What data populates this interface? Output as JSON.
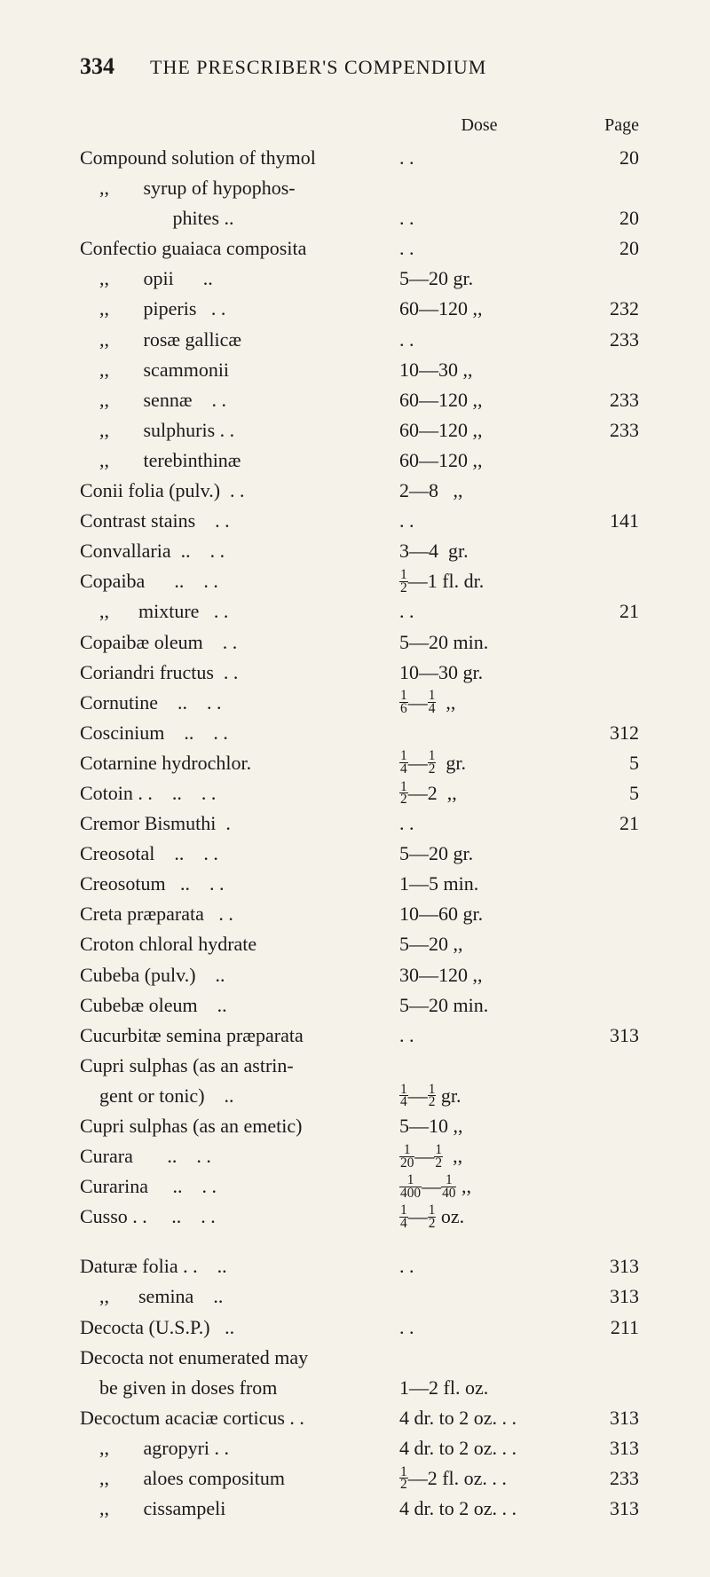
{
  "page_number": "334",
  "running_title": "THE PRESCRIBER'S COMPENDIUM",
  "col_dose": "Dose",
  "col_page": "Page",
  "rows": [
    {
      "name": "Compound solution of thymol",
      "dose": ". .",
      "page": "20"
    },
    {
      "name": "    ,,       syrup of hypophos-",
      "dose": "",
      "page": ""
    },
    {
      "name": "                   phites  ..",
      "dose": ". .",
      "page": "20"
    },
    {
      "name": "Confectio guaiaca composita",
      "dose": ". .",
      "page": "20"
    },
    {
      "name": "    ,,       opii      ..",
      "dose": "5—20 gr.",
      "page": ""
    },
    {
      "name": "    ,,       piperis   . .",
      "dose": "60—120 ,,",
      "page": "232"
    },
    {
      "name": "    ,,       rosæ gallicæ",
      "dose": ". .",
      "page": "233"
    },
    {
      "name": "    ,,       scammonii",
      "dose": "10—30 ,,",
      "page": ""
    },
    {
      "name": "    ,,       sennæ    . .",
      "dose": "60—120 ,,",
      "page": "233"
    },
    {
      "name": "    ,,       sulphuris . .",
      "dose": "60—120 ,,",
      "page": "233"
    },
    {
      "name": "    ,,       terebinthinæ",
      "dose": "60—120 ,,",
      "page": ""
    },
    {
      "name": "Conii folia (pulv.)  . .",
      "dose": "2—8   ,,",
      "page": ""
    },
    {
      "name": "Contrast stains    . .",
      "dose": ". .",
      "page": "141"
    },
    {
      "name": "Convallaria  ..    . .",
      "dose": "3—4  gr.",
      "page": ""
    },
    {
      "name": "Copaiba      ..    . .",
      "dose": "{1/2}—1 fl. dr.",
      "page": ""
    },
    {
      "name": "    ,,      mixture   . .",
      "dose": ". .",
      "page": "21"
    },
    {
      "name": "Copaibæ oleum    . .",
      "dose": "5—20 min.",
      "page": ""
    },
    {
      "name": "Coriandri fructus  . .",
      "dose": "10—30 gr.",
      "page": ""
    },
    {
      "name": "Cornutine    ..    . .",
      "dose": "{1/6}—{1/4}  ,,",
      "page": ""
    },
    {
      "name": "Coscinium    ..    . .",
      "dose": "",
      "page": "312"
    },
    {
      "name": "Cotarnine hydrochlor.",
      "dose": "{1/4}—{1/2}  gr.",
      "page": "5"
    },
    {
      "name": "Cotoin . .    ..    . .",
      "dose": "{1/2}—2  ,,",
      "page": "5"
    },
    {
      "name": "Cremor Bismuthi  .",
      "dose": ". .",
      "page": "21"
    },
    {
      "name": "Creosotal    ..    . .",
      "dose": "5—20 gr.",
      "page": ""
    },
    {
      "name": "Creosotum   ..    . .",
      "dose": "1—5 min.",
      "page": ""
    },
    {
      "name": "Creta præparata   . .",
      "dose": "10—60 gr.",
      "page": ""
    },
    {
      "name": "Croton chloral hydrate",
      "dose": "5—20 ,,",
      "page": ""
    },
    {
      "name": "Cubeba (pulv.)    ..",
      "dose": "30—120 ,,",
      "page": ""
    },
    {
      "name": "Cubebæ oleum    ..",
      "dose": "5—20 min.",
      "page": ""
    },
    {
      "name": "Cucurbitæ semina præparata",
      "dose": ". .",
      "page": "313"
    },
    {
      "name": "Cupri sulphas (as an astrin-",
      "dose": "",
      "page": ""
    },
    {
      "name": "    gent or tonic)    ..",
      "dose": "{1/4}—{1/2} gr.",
      "page": ""
    },
    {
      "name": "Cupri sulphas (as an emetic)",
      "dose": "5—10 ,,",
      "page": ""
    },
    {
      "name": "Curara       ..    . .",
      "dose": "{1/20}—{1/2}  ,,",
      "page": ""
    },
    {
      "name": "Curarina     ..    . .",
      "dose": "{1/400}—{1/40} ,,",
      "page": ""
    },
    {
      "name": "Cusso . .     ..    . .",
      "dose": "{1/4}—{1/2} oz.",
      "page": ""
    }
  ],
  "rows2": [
    {
      "name": "Daturæ folia . .    ..",
      "dose": ". .",
      "page": "313"
    },
    {
      "name": "    ,,      semina    ..",
      "dose": "",
      "page": "313"
    },
    {
      "name": "Decocta (U.S.P.)   ..",
      "dose": ". .",
      "page": "211"
    },
    {
      "name": "Decocta not enumerated may",
      "dose": "",
      "page": ""
    },
    {
      "name": "    be given in doses from",
      "dose": "1—2 fl. oz.",
      "page": ""
    },
    {
      "name": "Decoctum acaciæ corticus . .",
      "dose": "4 dr. to 2 oz. . .",
      "page": "313"
    },
    {
      "name": "    ,,       agropyri . .",
      "dose": "4 dr. to 2 oz. . .",
      "page": "313"
    },
    {
      "name": "    ,,       aloes compositum",
      "dose": "{1/2}—2 fl. oz. . .",
      "page": "233"
    },
    {
      "name": "    ,,       cissampeli",
      "dose": "4 dr. to 2 oz. . .",
      "page": "313"
    }
  ]
}
